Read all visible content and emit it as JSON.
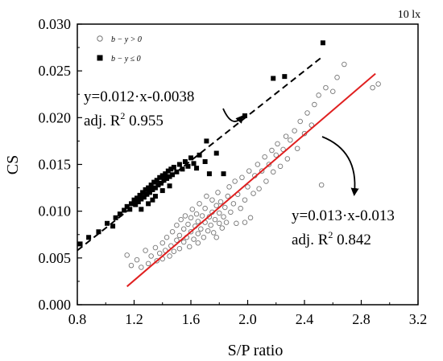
{
  "chart_data": {
    "type": "scatter",
    "corner_label": "10 lx",
    "xlabel": "S/P ratio",
    "ylabel": "CS",
    "xlim": [
      0.8,
      3.2
    ],
    "ylim": [
      0.0,
      0.03
    ],
    "x_ticks": [
      "0.8",
      "1.2",
      "1.6",
      "2.0",
      "2.4",
      "2.8",
      "3.2"
    ],
    "y_ticks": [
      "0.000",
      "0.005",
      "0.010",
      "0.015",
      "0.020",
      "0.025",
      "0.030"
    ],
    "legend_position": "top-left",
    "series": [
      {
        "name": "b − y > 0",
        "marker": "open-circle",
        "color": "#777777",
        "points": [
          [
            1.15,
            0.0053
          ],
          [
            1.18,
            0.0042
          ],
          [
            1.22,
            0.0048
          ],
          [
            1.25,
            0.004
          ],
          [
            1.28,
            0.0058
          ],
          [
            1.3,
            0.0044
          ],
          [
            1.32,
            0.0052
          ],
          [
            1.35,
            0.0061
          ],
          [
            1.36,
            0.0047
          ],
          [
            1.38,
            0.0055
          ],
          [
            1.4,
            0.0066
          ],
          [
            1.4,
            0.0049
          ],
          [
            1.42,
            0.0058
          ],
          [
            1.43,
            0.0072
          ],
          [
            1.45,
            0.0052
          ],
          [
            1.46,
            0.0063
          ],
          [
            1.47,
            0.0078
          ],
          [
            1.48,
            0.0057
          ],
          [
            1.5,
            0.0069
          ],
          [
            1.5,
            0.0085
          ],
          [
            1.52,
            0.006
          ],
          [
            1.52,
            0.0074
          ],
          [
            1.53,
            0.0091
          ],
          [
            1.55,
            0.0067
          ],
          [
            1.55,
            0.0081
          ],
          [
            1.56,
            0.0095
          ],
          [
            1.57,
            0.0072
          ],
          [
            1.58,
            0.0086
          ],
          [
            1.59,
            0.0062
          ],
          [
            1.6,
            0.0078
          ],
          [
            1.6,
            0.0093
          ],
          [
            1.61,
            0.0102
          ],
          [
            1.62,
            0.007
          ],
          [
            1.63,
            0.0084
          ],
          [
            1.64,
            0.0097
          ],
          [
            1.65,
            0.0076
          ],
          [
            1.65,
            0.0089
          ],
          [
            1.66,
            0.0108
          ],
          [
            1.67,
            0.0081
          ],
          [
            1.68,
            0.0095
          ],
          [
            1.69,
            0.0072
          ],
          [
            1.7,
            0.0088
          ],
          [
            1.7,
            0.0103
          ],
          [
            1.71,
            0.0116
          ],
          [
            1.72,
            0.0079
          ],
          [
            1.73,
            0.0094
          ],
          [
            1.74,
            0.0085
          ],
          [
            1.75,
            0.0099
          ],
          [
            1.75,
            0.0112
          ],
          [
            1.76,
            0.0077
          ],
          [
            1.77,
            0.0091
          ],
          [
            1.78,
            0.0106
          ],
          [
            1.79,
            0.012
          ],
          [
            1.8,
            0.0087
          ],
          [
            1.8,
            0.0098
          ],
          [
            1.81,
            0.011
          ],
          [
            1.82,
            0.0082
          ],
          [
            1.83,
            0.0094
          ],
          [
            1.84,
            0.0104
          ],
          [
            1.85,
            0.0088
          ],
          [
            1.86,
            0.0116
          ],
          [
            1.87,
            0.0126
          ],
          [
            1.88,
            0.0099
          ],
          [
            1.9,
            0.0108
          ],
          [
            1.91,
            0.0132
          ],
          [
            1.92,
            0.0087
          ],
          [
            1.93,
            0.0118
          ],
          [
            1.95,
            0.0103
          ],
          [
            1.96,
            0.0136
          ],
          [
            1.98,
            0.0112
          ],
          [
            2.0,
            0.0126
          ],
          [
            2.01,
            0.0143
          ],
          [
            2.02,
            0.0093
          ],
          [
            2.04,
            0.0119
          ],
          [
            2.05,
            0.0138
          ],
          [
            2.07,
            0.015
          ],
          [
            2.08,
            0.0124
          ],
          [
            2.1,
            0.0143
          ],
          [
            2.12,
            0.0158
          ],
          [
            2.13,
            0.0132
          ],
          [
            2.15,
            0.015
          ],
          [
            2.17,
            0.0165
          ],
          [
            2.18,
            0.0142
          ],
          [
            2.2,
            0.016
          ],
          [
            2.21,
            0.0172
          ],
          [
            2.23,
            0.0148
          ],
          [
            2.25,
            0.0166
          ],
          [
            2.27,
            0.018
          ],
          [
            2.28,
            0.0156
          ],
          [
            2.3,
            0.0176
          ],
          [
            2.33,
            0.0186
          ],
          [
            2.35,
            0.0167
          ],
          [
            2.37,
            0.0196
          ],
          [
            2.4,
            0.0183
          ],
          [
            2.42,
            0.0205
          ],
          [
            2.45,
            0.0192
          ],
          [
            2.47,
            0.0214
          ],
          [
            2.5,
            0.0224
          ],
          [
            2.52,
            0.0128
          ],
          [
            2.55,
            0.0232
          ],
          [
            2.6,
            0.0228
          ],
          [
            2.63,
            0.0243
          ],
          [
            2.68,
            0.0257
          ],
          [
            2.88,
            0.0232
          ],
          [
            2.92,
            0.0236
          ],
          [
            1.98,
            0.0088
          ],
          [
            1.78,
            0.0072
          ],
          [
            1.65,
            0.0066
          ]
        ]
      },
      {
        "name": "b − y ≤ 0",
        "marker": "filled-square",
        "color": "#000000",
        "points": [
          [
            0.82,
            0.0065
          ],
          [
            0.88,
            0.0072
          ],
          [
            0.95,
            0.0078
          ],
          [
            1.01,
            0.0087
          ],
          [
            1.05,
            0.0084
          ],
          [
            1.07,
            0.0093
          ],
          [
            1.1,
            0.0097
          ],
          [
            1.13,
            0.0101
          ],
          [
            1.15,
            0.0105
          ],
          [
            1.17,
            0.0102
          ],
          [
            1.18,
            0.0108
          ],
          [
            1.2,
            0.0112
          ],
          [
            1.21,
            0.0107
          ],
          [
            1.22,
            0.0114
          ],
          [
            1.23,
            0.011
          ],
          [
            1.24,
            0.0117
          ],
          [
            1.25,
            0.0113
          ],
          [
            1.26,
            0.012
          ],
          [
            1.27,
            0.0115
          ],
          [
            1.28,
            0.0123
          ],
          [
            1.29,
            0.0118
          ],
          [
            1.3,
            0.0125
          ],
          [
            1.31,
            0.012
          ],
          [
            1.32,
            0.0128
          ],
          [
            1.33,
            0.0123
          ],
          [
            1.34,
            0.0131
          ],
          [
            1.35,
            0.0125
          ],
          [
            1.36,
            0.0133
          ],
          [
            1.37,
            0.0128
          ],
          [
            1.38,
            0.0136
          ],
          [
            1.39,
            0.013
          ],
          [
            1.4,
            0.0138
          ],
          [
            1.41,
            0.0133
          ],
          [
            1.42,
            0.014
          ],
          [
            1.43,
            0.0135
          ],
          [
            1.44,
            0.0143
          ],
          [
            1.45,
            0.0137
          ],
          [
            1.46,
            0.0145
          ],
          [
            1.47,
            0.0139
          ],
          [
            1.48,
            0.0147
          ],
          [
            1.5,
            0.0142
          ],
          [
            1.52,
            0.015
          ],
          [
            1.54,
            0.0145
          ],
          [
            1.56,
            0.0153
          ],
          [
            1.58,
            0.0148
          ],
          [
            1.6,
            0.0157
          ],
          [
            1.62,
            0.0151
          ],
          [
            1.64,
            0.0146
          ],
          [
            1.66,
            0.016
          ],
          [
            1.7,
            0.0153
          ],
          [
            1.71,
            0.0175
          ],
          [
            1.73,
            0.014
          ],
          [
            1.78,
            0.0162
          ],
          [
            1.83,
            0.014
          ],
          [
            1.98,
            0.0202
          ],
          [
            2.18,
            0.0242
          ],
          [
            2.26,
            0.0244
          ],
          [
            2.53,
            0.028
          ],
          [
            1.3,
            0.0108
          ],
          [
            1.35,
            0.0116
          ],
          [
            1.4,
            0.0122
          ],
          [
            1.45,
            0.0127
          ],
          [
            1.25,
            0.0102
          ],
          [
            1.33,
            0.0112
          ]
        ]
      }
    ],
    "fits": [
      {
        "series": "b − y ≤ 0",
        "style": "dashed",
        "color": "#000000",
        "slope": 0.012,
        "intercept": -0.0038,
        "x_range": [
          0.8,
          2.52
        ],
        "equation": "y=0.012·x-0.0038",
        "r2_prefix": "adj. R",
        "r2_sup": "2",
        "r2_value": " 0.955"
      },
      {
        "series": "b − y > 0",
        "style": "solid",
        "color": "#e02020",
        "slope": 0.013,
        "intercept": -0.013,
        "x_range": [
          1.15,
          2.9
        ],
        "equation": "y=0.013·x-0.013",
        "r2_prefix": "adj. R",
        "r2_sup": "2",
        "r2_value": " 0.842"
      }
    ]
  }
}
